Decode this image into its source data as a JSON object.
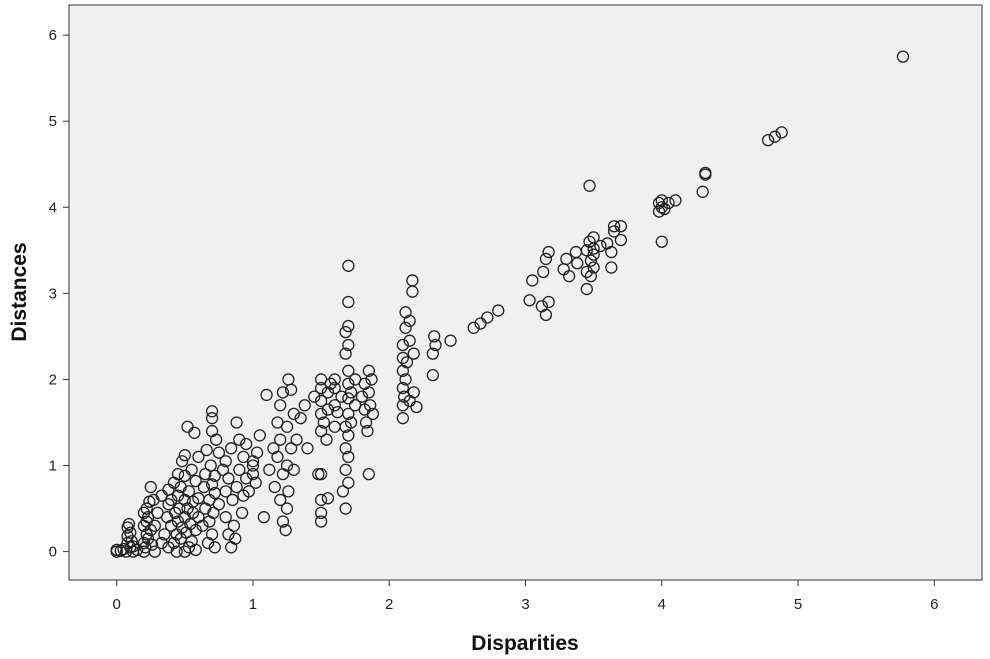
{
  "chart_data": {
    "type": "scatter",
    "title": "",
    "xlabel": "Disparities",
    "ylabel": "Distances",
    "xlim": [
      -0.35,
      6.35
    ],
    "ylim": [
      -0.33,
      6.35
    ],
    "xticks": [
      0,
      1,
      2,
      3,
      4,
      5,
      6
    ],
    "yticks": [
      0,
      1,
      2,
      3,
      4,
      5,
      6
    ],
    "grid": false,
    "plot_background": "#f0f0f0",
    "marker_color": "#222222",
    "series": [
      {
        "points": [
          [
            0.0,
            0.0
          ],
          [
            0.0,
            0.02
          ],
          [
            0.03,
            0.01
          ],
          [
            0.05,
            0.03
          ],
          [
            0.07,
            0.0
          ],
          [
            0.08,
            0.1
          ],
          [
            0.08,
            0.18
          ],
          [
            0.08,
            0.28
          ],
          [
            0.09,
            0.32
          ],
          [
            0.1,
            0.05
          ],
          [
            0.1,
            0.22
          ],
          [
            0.11,
            0.12
          ],
          [
            0.12,
            0.0
          ],
          [
            0.12,
            0.06
          ],
          [
            0.15,
            0.02
          ],
          [
            0.2,
            0.0
          ],
          [
            0.2,
            0.1
          ],
          [
            0.2,
            0.3
          ],
          [
            0.2,
            0.45
          ],
          [
            0.21,
            0.05
          ],
          [
            0.22,
            0.2
          ],
          [
            0.22,
            0.35
          ],
          [
            0.22,
            0.5
          ],
          [
            0.23,
            0.15
          ],
          [
            0.23,
            0.4
          ],
          [
            0.24,
            0.58
          ],
          [
            0.25,
            0.25
          ],
          [
            0.25,
            0.75
          ],
          [
            0.26,
            0.08
          ],
          [
            0.27,
            0.6
          ],
          [
            0.28,
            0.0
          ],
          [
            0.28,
            0.3
          ],
          [
            0.3,
            0.45
          ],
          [
            0.33,
            0.1
          ],
          [
            0.33,
            0.65
          ],
          [
            0.35,
            0.2
          ],
          [
            0.37,
            0.4
          ],
          [
            0.38,
            0.05
          ],
          [
            0.38,
            0.55
          ],
          [
            0.38,
            0.72
          ],
          [
            0.4,
            0.3
          ],
          [
            0.4,
            0.6
          ],
          [
            0.42,
            0.1
          ],
          [
            0.42,
            0.8
          ],
          [
            0.43,
            0.45
          ],
          [
            0.44,
            0.2
          ],
          [
            0.44,
            0.0
          ],
          [
            0.45,
            0.35
          ],
          [
            0.45,
            0.65
          ],
          [
            0.45,
            0.9
          ],
          [
            0.46,
            0.5
          ],
          [
            0.47,
            0.15
          ],
          [
            0.47,
            0.75
          ],
          [
            0.48,
            0.28
          ],
          [
            0.48,
            1.05
          ],
          [
            0.5,
            0.4
          ],
          [
            0.5,
            0.0
          ],
          [
            0.5,
            0.6
          ],
          [
            0.5,
            0.88
          ],
          [
            0.5,
            1.12
          ],
          [
            0.51,
            0.22
          ],
          [
            0.52,
            0.5
          ],
          [
            0.52,
            1.45
          ],
          [
            0.53,
            0.05
          ],
          [
            0.53,
            0.7
          ],
          [
            0.54,
            0.32
          ],
          [
            0.55,
            0.95
          ],
          [
            0.55,
            0.12
          ],
          [
            0.56,
            0.45
          ],
          [
            0.56,
            0.58
          ],
          [
            0.57,
            1.38
          ],
          [
            0.58,
            0.02
          ],
          [
            0.58,
            0.25
          ],
          [
            0.58,
            0.82
          ],
          [
            0.6,
            0.4
          ],
          [
            0.6,
            0.62
          ],
          [
            0.6,
            1.1
          ],
          [
            0.63,
            0.3
          ],
          [
            0.64,
            0.75
          ],
          [
            0.65,
            0.5
          ],
          [
            0.65,
            0.9
          ],
          [
            0.66,
            1.18
          ],
          [
            0.67,
            0.1
          ],
          [
            0.68,
            0.35
          ],
          [
            0.68,
            0.6
          ],
          [
            0.69,
            1.0
          ],
          [
            0.7,
            0.2
          ],
          [
            0.7,
            0.78
          ],
          [
            0.7,
            1.4
          ],
          [
            0.7,
            1.55
          ],
          [
            0.7,
            1.63
          ],
          [
            0.71,
            0.45
          ],
          [
            0.72,
            0.05
          ],
          [
            0.72,
            0.68
          ],
          [
            0.72,
            0.88
          ],
          [
            0.73,
            1.3
          ],
          [
            0.75,
            0.55
          ],
          [
            0.75,
            1.15
          ],
          [
            0.78,
            0.95
          ],
          [
            0.8,
            0.4
          ],
          [
            0.8,
            0.7
          ],
          [
            0.8,
            1.05
          ],
          [
            0.82,
            0.2
          ],
          [
            0.82,
            0.85
          ],
          [
            0.84,
            0.05
          ],
          [
            0.84,
            1.2
          ],
          [
            0.85,
            0.6
          ],
          [
            0.86,
            0.3
          ],
          [
            0.87,
            0.15
          ],
          [
            0.88,
            0.75
          ],
          [
            0.88,
            1.5
          ],
          [
            0.9,
            0.95
          ],
          [
            0.9,
            1.3
          ],
          [
            0.92,
            0.45
          ],
          [
            0.93,
            0.65
          ],
          [
            0.93,
            1.1
          ],
          [
            0.95,
            0.85
          ],
          [
            0.95,
            1.25
          ],
          [
            0.97,
            0.7
          ],
          [
            1.0,
            1.0
          ],
          [
            1.0,
            0.9
          ],
          [
            1.0,
            1.05
          ],
          [
            1.02,
            0.8
          ],
          [
            1.03,
            1.15
          ],
          [
            1.05,
            1.35
          ],
          [
            1.08,
            0.4
          ],
          [
            1.1,
            1.82
          ],
          [
            1.12,
            0.95
          ],
          [
            1.15,
            1.2
          ],
          [
            1.16,
            0.75
          ],
          [
            1.18,
            1.5
          ],
          [
            1.18,
            1.1
          ],
          [
            1.2,
            0.6
          ],
          [
            1.2,
            1.3
          ],
          [
            1.2,
            1.7
          ],
          [
            1.22,
            0.35
          ],
          [
            1.22,
            0.9
          ],
          [
            1.22,
            1.85
          ],
          [
            1.24,
            0.25
          ],
          [
            1.25,
            0.5
          ],
          [
            1.25,
            1.0
          ],
          [
            1.25,
            1.45
          ],
          [
            1.26,
            0.7
          ],
          [
            1.26,
            2.0
          ],
          [
            1.28,
            1.2
          ],
          [
            1.28,
            1.88
          ],
          [
            1.3,
            0.95
          ],
          [
            1.3,
            1.6
          ],
          [
            1.32,
            1.3
          ],
          [
            1.35,
            1.55
          ],
          [
            1.38,
            1.7
          ],
          [
            1.4,
            1.2
          ],
          [
            1.45,
            1.8
          ],
          [
            1.48,
            0.9
          ],
          [
            1.5,
            0.35
          ],
          [
            1.5,
            0.45
          ],
          [
            1.5,
            0.6
          ],
          [
            1.5,
            0.9
          ],
          [
            1.5,
            1.4
          ],
          [
            1.5,
            1.6
          ],
          [
            1.5,
            1.75
          ],
          [
            1.5,
            1.9
          ],
          [
            1.5,
            2.0
          ],
          [
            1.52,
            1.5
          ],
          [
            1.54,
            1.3
          ],
          [
            1.55,
            0.62
          ],
          [
            1.55,
            1.65
          ],
          [
            1.55,
            1.85
          ],
          [
            1.57,
            1.95
          ],
          [
            1.6,
            1.45
          ],
          [
            1.6,
            1.7
          ],
          [
            1.6,
            1.9
          ],
          [
            1.6,
            2.0
          ],
          [
            1.62,
            1.62
          ],
          [
            1.65,
            1.8
          ],
          [
            1.66,
            0.7
          ],
          [
            1.68,
            0.5
          ],
          [
            1.68,
            0.95
          ],
          [
            1.68,
            1.2
          ],
          [
            1.68,
            1.45
          ],
          [
            1.68,
            2.3
          ],
          [
            1.68,
            2.55
          ],
          [
            1.7,
            0.8
          ],
          [
            1.7,
            1.1
          ],
          [
            1.7,
            1.35
          ],
          [
            1.7,
            1.6
          ],
          [
            1.7,
            1.78
          ],
          [
            1.7,
            1.95
          ],
          [
            1.7,
            2.1
          ],
          [
            1.7,
            2.4
          ],
          [
            1.7,
            2.62
          ],
          [
            1.7,
            2.9
          ],
          [
            1.7,
            3.32
          ],
          [
            1.72,
            1.5
          ],
          [
            1.72,
            1.85
          ],
          [
            1.75,
            1.7
          ],
          [
            1.75,
            2.0
          ],
          [
            1.8,
            1.8
          ],
          [
            1.82,
            1.65
          ],
          [
            1.82,
            1.95
          ],
          [
            1.83,
            1.5
          ],
          [
            1.84,
            1.4
          ],
          [
            1.85,
            1.85
          ],
          [
            1.85,
            2.1
          ],
          [
            1.85,
            0.9
          ],
          [
            1.86,
            1.7
          ],
          [
            1.87,
            2.0
          ],
          [
            1.88,
            1.6
          ],
          [
            2.1,
            1.55
          ],
          [
            2.1,
            1.7
          ],
          [
            2.1,
            1.9
          ],
          [
            2.1,
            2.1
          ],
          [
            2.1,
            2.25
          ],
          [
            2.1,
            2.4
          ],
          [
            2.11,
            1.8
          ],
          [
            2.12,
            2.0
          ],
          [
            2.12,
            2.6
          ],
          [
            2.12,
            2.78
          ],
          [
            2.13,
            2.2
          ],
          [
            2.15,
            1.75
          ],
          [
            2.15,
            2.45
          ],
          [
            2.15,
            2.68
          ],
          [
            2.17,
            3.02
          ],
          [
            2.17,
            3.15
          ],
          [
            2.18,
            1.85
          ],
          [
            2.18,
            2.3
          ],
          [
            2.2,
            1.68
          ],
          [
            2.32,
            2.05
          ],
          [
            2.32,
            2.3
          ],
          [
            2.33,
            2.5
          ],
          [
            2.34,
            2.4
          ],
          [
            2.45,
            2.45
          ],
          [
            2.62,
            2.6
          ],
          [
            2.67,
            2.65
          ],
          [
            2.72,
            2.72
          ],
          [
            2.8,
            2.8
          ],
          [
            3.03,
            2.92
          ],
          [
            3.05,
            3.15
          ],
          [
            3.12,
            2.85
          ],
          [
            3.13,
            3.25
          ],
          [
            3.15,
            2.75
          ],
          [
            3.15,
            3.4
          ],
          [
            3.17,
            3.48
          ],
          [
            3.17,
            2.9
          ],
          [
            3.28,
            3.28
          ],
          [
            3.3,
            3.4
          ],
          [
            3.32,
            3.2
          ],
          [
            3.37,
            3.48
          ],
          [
            3.38,
            3.35
          ],
          [
            3.45,
            3.05
          ],
          [
            3.45,
            3.25
          ],
          [
            3.45,
            3.5
          ],
          [
            3.47,
            3.6
          ],
          [
            3.47,
            4.25
          ],
          [
            3.48,
            3.2
          ],
          [
            3.48,
            3.38
          ],
          [
            3.5,
            3.52
          ],
          [
            3.5,
            3.45
          ],
          [
            3.5,
            3.3
          ],
          [
            3.5,
            3.65
          ],
          [
            3.55,
            3.55
          ],
          [
            3.6,
            3.58
          ],
          [
            3.63,
            3.3
          ],
          [
            3.63,
            3.48
          ],
          [
            3.65,
            3.78
          ],
          [
            3.65,
            3.72
          ],
          [
            3.7,
            3.62
          ],
          [
            3.7,
            3.78
          ],
          [
            3.98,
            3.95
          ],
          [
            3.98,
            4.05
          ],
          [
            4.0,
            4.0
          ],
          [
            4.0,
            4.08
          ],
          [
            4.0,
            3.6
          ],
          [
            4.02,
            3.98
          ],
          [
            4.05,
            4.05
          ],
          [
            4.1,
            4.08
          ],
          [
            4.3,
            4.18
          ],
          [
            4.32,
            4.38
          ],
          [
            4.32,
            4.4
          ],
          [
            4.78,
            4.78
          ],
          [
            4.83,
            4.82
          ],
          [
            4.88,
            4.87
          ],
          [
            5.77,
            5.75
          ]
        ]
      }
    ]
  }
}
